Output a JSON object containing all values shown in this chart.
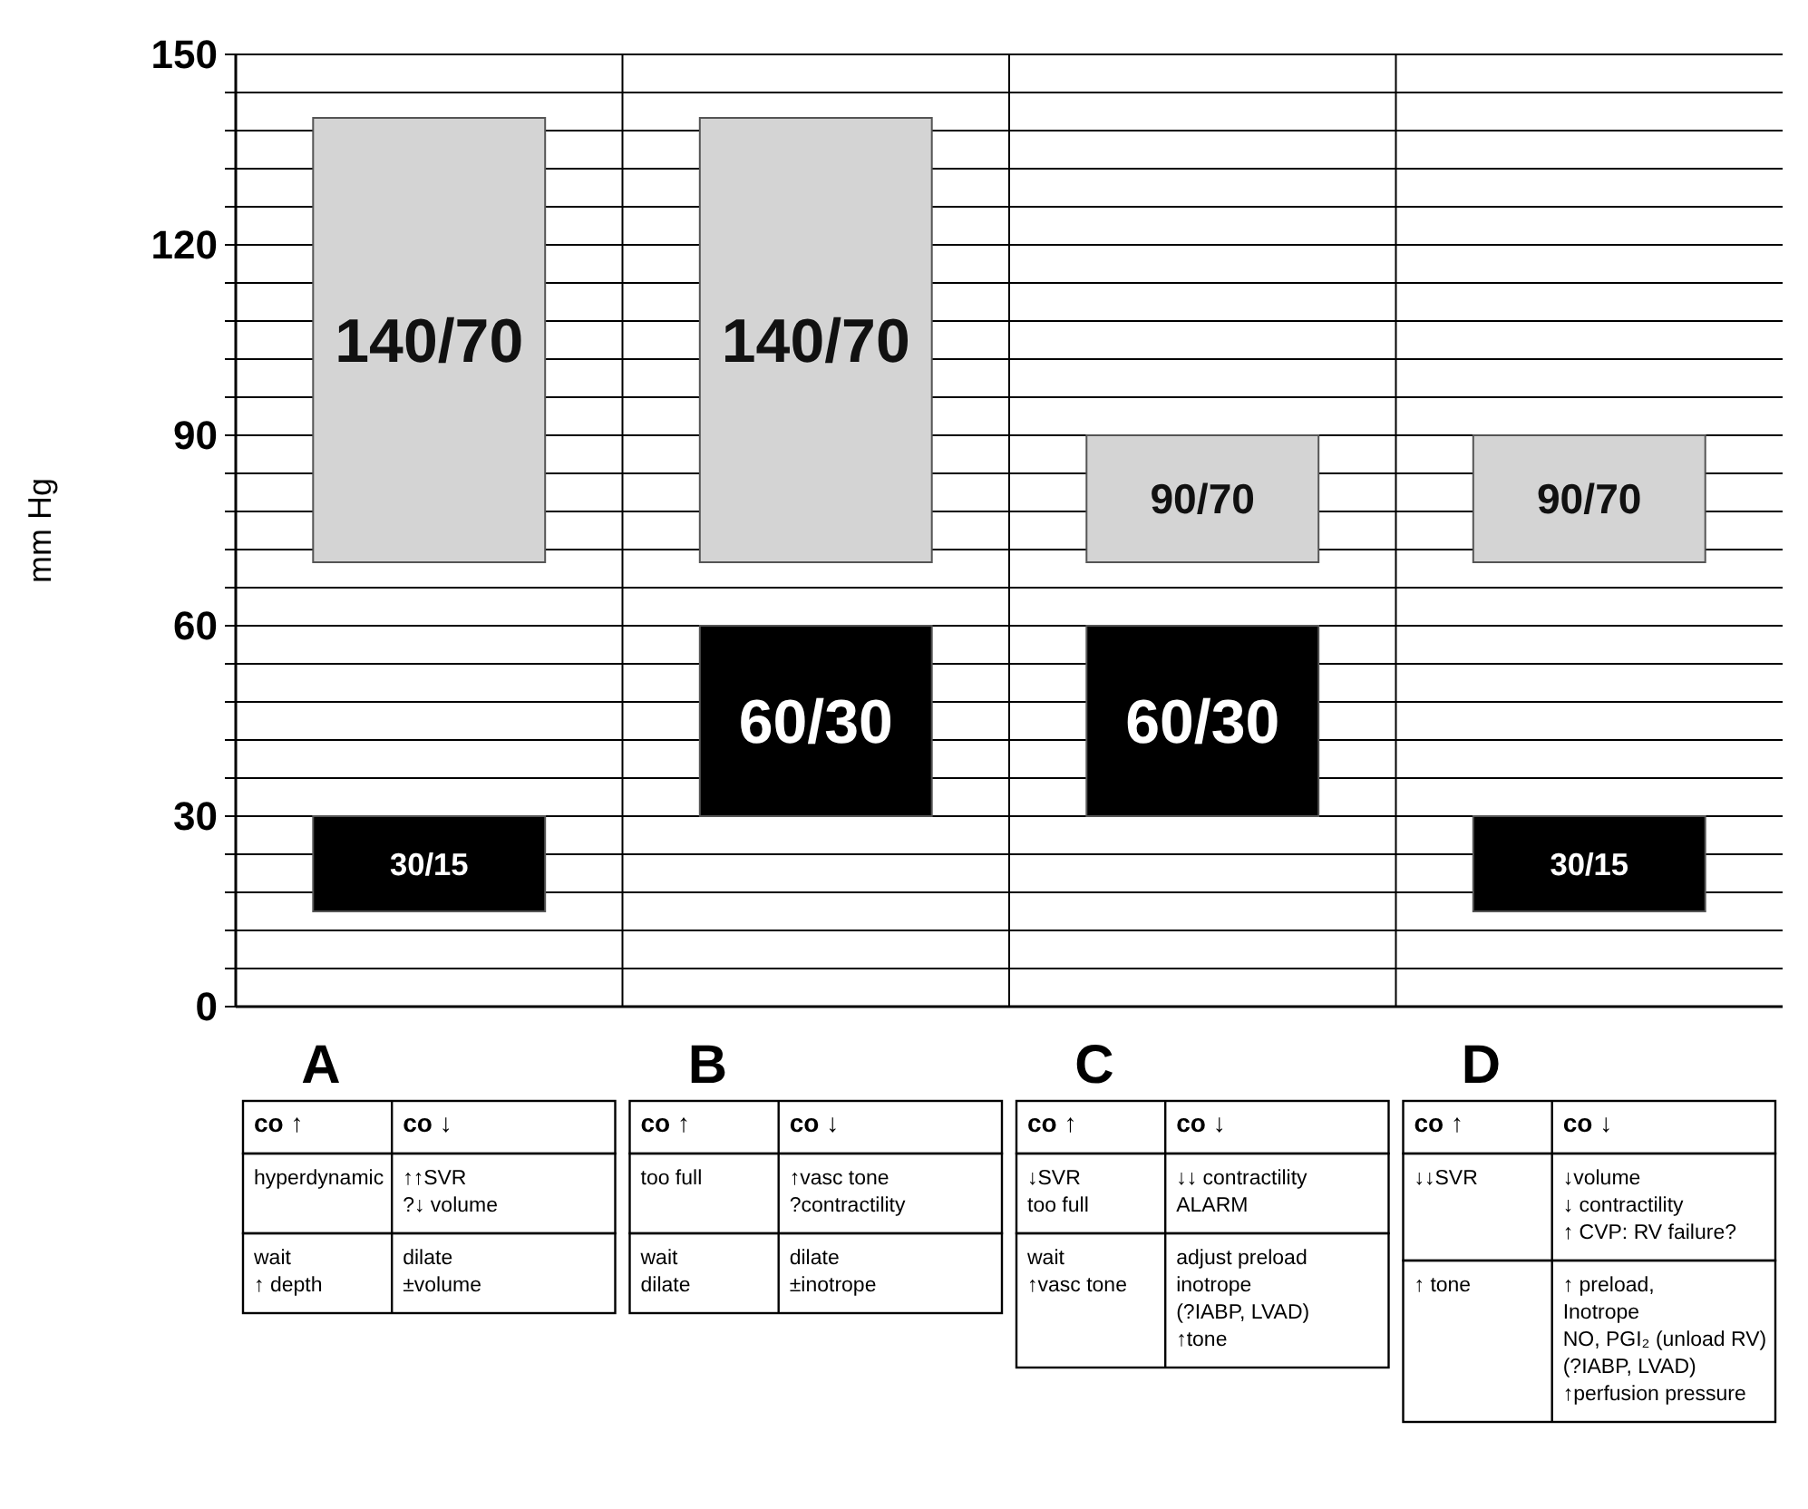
{
  "chart_data": {
    "type": "bar",
    "ylabel": "mm Hg",
    "categories": [
      "A",
      "B",
      "C",
      "D"
    ],
    "series": [
      {
        "color": "#d4d4d4",
        "base": [
          70,
          70,
          70,
          70
        ],
        "values": [
          70,
          70,
          20,
          20
        ],
        "value_labels": [
          "140/70",
          "140/70",
          "90/70",
          "90/70"
        ]
      },
      {
        "color": "#000000",
        "base": [
          15,
          30,
          30,
          15
        ],
        "values": [
          15,
          30,
          30,
          15
        ],
        "value_labels": [
          "30/15",
          "60/30",
          "60/30",
          "30/15"
        ]
      }
    ],
    "ylim": [
      0,
      150
    ],
    "yticks": [
      0,
      {
        "value": 6,
        "label": null
      },
      {
        "value": 12,
        "label": null
      },
      {
        "value": 18,
        "label": null
      },
      {
        "value": 24,
        "label": null
      },
      30,
      {
        "value": 36,
        "label": null
      },
      {
        "value": 42,
        "label": null
      },
      {
        "value": 48,
        "label": null
      },
      {
        "value": 54,
        "label": null
      },
      60,
      {
        "value": 66,
        "label": null
      },
      {
        "value": 72,
        "label": null
      },
      {
        "value": 78,
        "label": null
      },
      {
        "value": 84,
        "label": null
      },
      90,
      {
        "value": 96,
        "label": null
      },
      {
        "value": 102,
        "label": null
      },
      {
        "value": 108,
        "label": null
      },
      {
        "value": 114,
        "label": null
      },
      120,
      {
        "value": 126,
        "label": null
      },
      {
        "value": 132,
        "label": null
      },
      {
        "value": 138,
        "label": null
      },
      {
        "value": 144,
        "label": null
      },
      150
    ],
    "grid": true,
    "annotations": [
      "co ↑",
      "co ↓",
      "hyperdynamic",
      "↑↑SVR\n?↓ volume",
      "wait\n↑ depth",
      "dilate\n±volume",
      "co ↑",
      "co ↓",
      "too full",
      "↑vasc tone\n?contractility",
      "wait\ndilate",
      "dilate\n±inotrope",
      "co ↑",
      "co ↓",
      "↓SVR\ntoo full",
      "↓↓ contractility\nALARM",
      "wait\n↑vasc tone",
      "adjust preload\ninotrope\n(?IABP, LVAD)\n↑tone",
      "co ↑",
      "co ↓",
      "↓↓SVR",
      "↓volume\n↓ contractility\n↑ CVP: RV failure?",
      "↑ tone",
      "↑ preload,\nInotrope\nNO, PGI₂ (unload RV)\n(?IABP, LVAD)\n↑perfusion pressure"
    ]
  }
}
